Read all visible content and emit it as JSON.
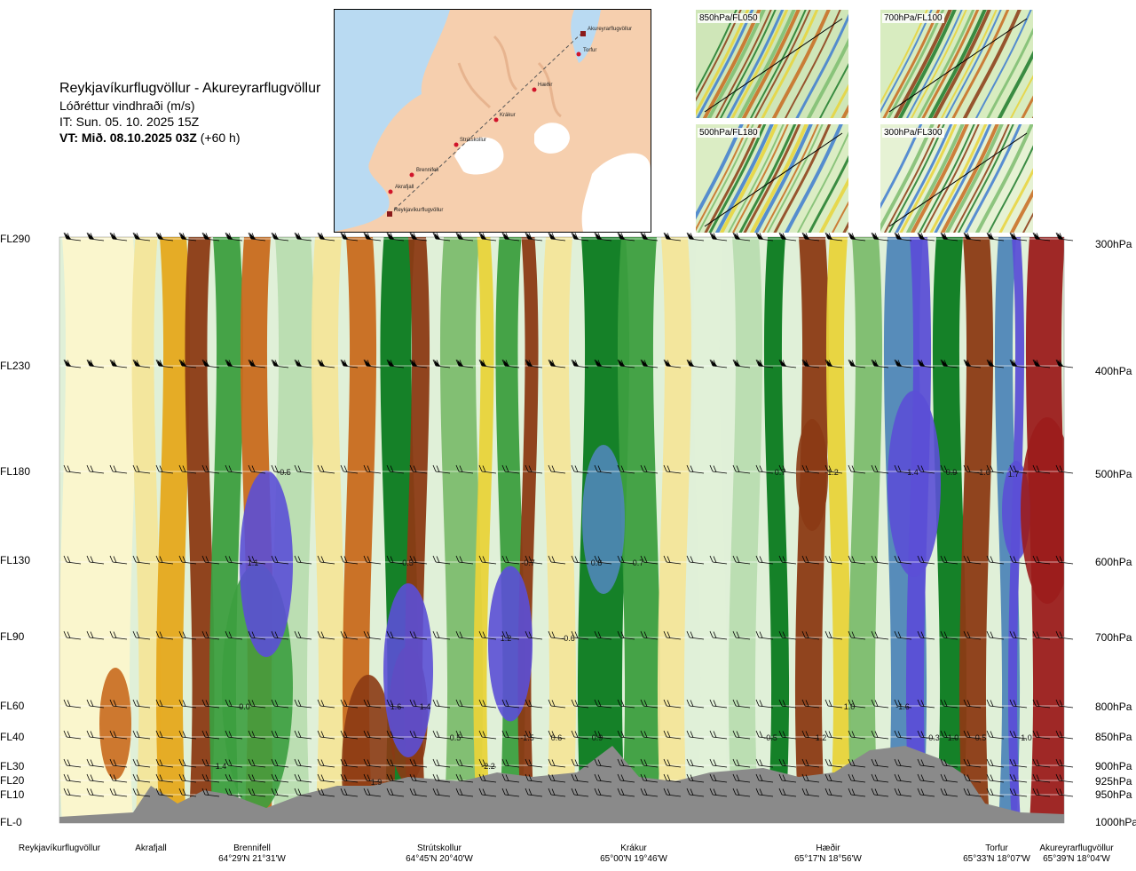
{
  "header": {
    "route": "Reykjavíkurflugvöllur - Akureyrarflugvöllur",
    "quantity": "Lóðréttur vindhraði (m/s)",
    "issue_time": "IT: Sun. 05. 10. 2025 15Z",
    "valid_label": "VT: Mið. 08.10.2025 03Z",
    "valid_offset": "(+60 h)"
  },
  "map": {
    "waypoints": [
      "Reykjavíkurflugvöllur",
      "Akrafjall",
      "Brennifell",
      "Strútskollur",
      "Krákur",
      "Hæðir",
      "Torfur",
      "Akureyrarflugvöllur"
    ],
    "colors": {
      "land": "#f6cfae",
      "sea": "#b9daf2",
      "ice": "#ffffff",
      "route": "#d0142a"
    }
  },
  "mini_maps": [
    {
      "label": "850hPa/FL050"
    },
    {
      "label": "700hPa/FL100"
    },
    {
      "label": "500hPa/FL180"
    },
    {
      "label": "300hPa/FL300"
    }
  ],
  "chart_data": {
    "type": "heatmap",
    "title": "Lóðréttur vindhraði (m/s)",
    "left_levels": [
      "FL290",
      "FL230",
      "FL180",
      "FL130",
      "FL90",
      "FL60",
      "FL40",
      "FL30",
      "FL20",
      "FL10",
      "FL-0"
    ],
    "right_levels": [
      "300hPa",
      "400hPa",
      "500hPa",
      "600hPa",
      "700hPa",
      "800hPa",
      "850hPa",
      "900hPa",
      "925hPa",
      "950hPa",
      "1000hPa"
    ],
    "stations": [
      {
        "name": "Reykjavíkurflugvöllur",
        "coord": ""
      },
      {
        "name": "Akrafjall",
        "coord": ""
      },
      {
        "name": "Brennifell",
        "coord": "64°29'N 21°31'W"
      },
      {
        "name": "Strútskollur",
        "coord": "64°45'N 20°40'W"
      },
      {
        "name": "Krákur",
        "coord": "65°00'N 19°46'W"
      },
      {
        "name": "Hæðir",
        "coord": "65°17'N 18°56'W"
      },
      {
        "name": "Torfur",
        "coord": "65°33'N 18°07'W"
      },
      {
        "name": "Akureyrarflugvöllur",
        "coord": "65°39'N 18°04'W"
      }
    ],
    "value_labels": [
      "-0.5",
      "1.1",
      "-0.5",
      "-0.7",
      "0.8",
      "0.7",
      "1.2",
      "-0.6",
      "-0.0",
      "1.6",
      "1.4",
      "0.5",
      "-1.5",
      "0.6",
      "0.9",
      "-0.5",
      "1.2",
      "1.0",
      "-1.6",
      "-0.3",
      "1.0",
      "0.5",
      "-1.0",
      "1.4",
      "-2.2",
      "1.9",
      "0.7",
      "-1.2",
      "-1.4",
      "0.9",
      "-1.6",
      "1.7"
    ],
    "colorscale": [
      "#5b4fd6",
      "#4f86b8",
      "#0a7a1f",
      "#3c9e3f",
      "#7cbc6e",
      "#b8dcb0",
      "#e0f0d8",
      "#fbf6cc",
      "#f3e59a",
      "#e8d33a",
      "#e5a81c",
      "#c86a1e",
      "#8b3a14",
      "#9b1c1c"
    ],
    "colors": {
      "terrain": "#8a8a8a"
    }
  }
}
